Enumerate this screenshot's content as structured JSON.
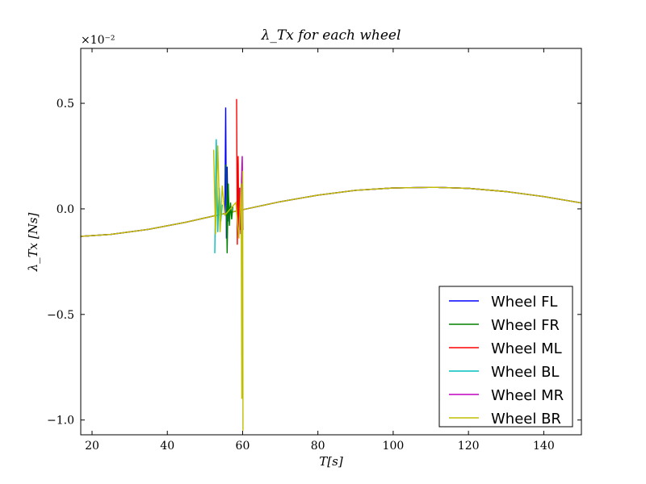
{
  "chart_data": {
    "type": "line",
    "title": "λ_Tx for each wheel",
    "xlabel": "T[s]",
    "ylabel": "λ_Tx [Ns]",
    "y_scale_label": "×10⁻²",
    "xlim": [
      17,
      150
    ],
    "ylim": [
      -1.07,
      0.76
    ],
    "xticks": [
      20,
      40,
      60,
      80,
      100,
      120,
      140
    ],
    "yticks": [
      -1.0,
      -0.5,
      0.0,
      0.5
    ],
    "ytick_labels": [
      "−1.0",
      "−0.5",
      "0.0",
      "0.5"
    ],
    "grid": false,
    "legend_position": "lower-right",
    "base_curve": {
      "x": [
        17,
        25,
        35,
        45,
        55,
        60,
        70,
        80,
        90,
        100,
        111,
        120,
        130,
        140,
        150
      ],
      "y": [
        -0.13,
        -0.121,
        -0.097,
        -0.063,
        -0.023,
        -0.004,
        0.034,
        0.065,
        0.088,
        0.099,
        0.102,
        0.097,
        0.082,
        0.058,
        0.028
      ]
    },
    "series": [
      {
        "name": "Wheel FL",
        "color": "#0000ff",
        "x": [
          55.3,
          55.5,
          55.7,
          55.9,
          56.1,
          56.3,
          56.5
        ],
        "y": [
          -0.02,
          0.48,
          -0.14,
          0.2,
          -0.06,
          0.02,
          -0.01
        ]
      },
      {
        "name": "Wheel FR",
        "color": "#008000",
        "x": [
          55.6,
          55.9,
          56.2,
          56.5,
          56.8,
          57.1,
          57.4
        ],
        "y": [
          0.21,
          -0.21,
          0.12,
          -0.08,
          0.03,
          -0.05,
          0.01
        ]
      },
      {
        "name": "Wheel ML",
        "color": "#ff0000",
        "x": [
          58.4,
          58.6,
          58.8,
          59.0,
          59.2,
          59.4,
          59.6
        ],
        "y": [
          0.52,
          -0.17,
          0.25,
          -0.12,
          0.1,
          -0.1,
          0.04
        ]
      },
      {
        "name": "Wheel BL",
        "color": "#00bfbf",
        "x": [
          52.6,
          53.0,
          53.4,
          53.8,
          54.2,
          54.6
        ],
        "y": [
          -0.21,
          0.33,
          -0.11,
          0.1,
          -0.06,
          0.02
        ]
      },
      {
        "name": "Wheel MR",
        "color": "#bf00bf",
        "x": [
          59.3,
          59.5,
          59.7,
          59.9,
          60.1
        ],
        "y": [
          0.1,
          -0.12,
          0.14,
          0.25,
          -0.1
        ]
      },
      {
        "name": "Wheel BR",
        "color": "#bfbf00",
        "x": [
          52.3,
          52.8,
          53.4,
          54.0,
          54.6,
          55.3,
          58.2,
          59.0,
          59.6,
          59.8,
          60.0,
          60.1
        ],
        "y": [
          0.28,
          -0.12,
          0.3,
          -0.11,
          0.11,
          -0.03,
          0.03,
          -0.14,
          0.12,
          -0.9,
          0.18,
          -1.05
        ]
      }
    ]
  }
}
